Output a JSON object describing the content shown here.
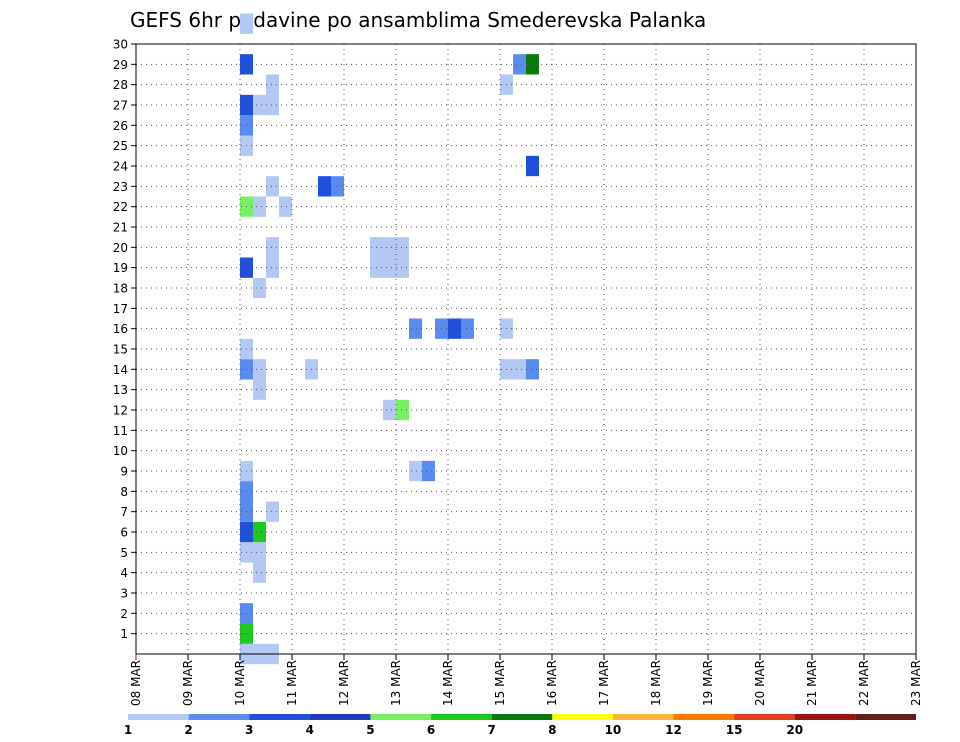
{
  "chart_data": {
    "type": "heatmap",
    "title": "GEFS 6hr padavine po ansamblima Smederevska Palanka",
    "xlabel": "",
    "ylabel": "",
    "x_ticks": [
      "08 MAR",
      "09 MAR",
      "10 MAR",
      "11 MAR",
      "12 MAR",
      "13 MAR",
      "14 MAR",
      "15 MAR",
      "16 MAR",
      "17 MAR",
      "18 MAR",
      "19 MAR",
      "20 MAR",
      "21 MAR",
      "22 MAR",
      "23 MAR"
    ],
    "x_range_steps": [
      0,
      60
    ],
    "step_hours": 6,
    "y_ticks": [
      "1",
      "2",
      "3",
      "4",
      "5",
      "6",
      "7",
      "8",
      "9",
      "10",
      "11",
      "12",
      "13",
      "14",
      "15",
      "16",
      "17",
      "18",
      "19",
      "20",
      "21",
      "22",
      "23",
      "24",
      "25",
      "26",
      "27",
      "28",
      "29",
      "30"
    ],
    "y_range": [
      0,
      30
    ],
    "grid": true,
    "legend_position": "bottom",
    "colorbar": {
      "labels": [
        "1",
        "2",
        "3",
        "4",
        "5",
        "6",
        "7",
        "8",
        "10",
        "12",
        "15",
        "20"
      ],
      "colors": [
        "#b4c8f5",
        "#5a8cf0",
        "#1e50dc",
        "#1e3cbe",
        "#78f064",
        "#1ec81e",
        "#0a780a",
        "#ffff00",
        "#ffb43c",
        "#ff7800",
        "#e63c1e",
        "#9b1414",
        "#641e1e"
      ]
    },
    "cells": [
      {
        "step": 8,
        "member": 0,
        "cat": 0
      },
      {
        "step": 9,
        "member": 0,
        "cat": 0
      },
      {
        "step": 10,
        "member": 0,
        "cat": 0
      },
      {
        "step": 8,
        "member": 1,
        "cat": 5
      },
      {
        "step": 8,
        "member": 2,
        "cat": 1
      },
      {
        "step": 9,
        "member": 4,
        "cat": 0
      },
      {
        "step": 8,
        "member": 5,
        "cat": 0
      },
      {
        "step": 9,
        "member": 5,
        "cat": 0
      },
      {
        "step": 8,
        "member": 6,
        "cat": 2
      },
      {
        "step": 9,
        "member": 6,
        "cat": 5
      },
      {
        "step": 8,
        "member": 7,
        "cat": 1
      },
      {
        "step": 10,
        "member": 7,
        "cat": 0
      },
      {
        "step": 8,
        "member": 8,
        "cat": 1
      },
      {
        "step": 8,
        "member": 9,
        "cat": 0
      },
      {
        "step": 21,
        "member": 9,
        "cat": 0
      },
      {
        "step": 22,
        "member": 9,
        "cat": 1
      },
      {
        "step": 19,
        "member": 12,
        "cat": 0
      },
      {
        "step": 20,
        "member": 12,
        "cat": 4
      },
      {
        "step": 9,
        "member": 13,
        "cat": 0
      },
      {
        "step": 8,
        "member": 14,
        "cat": 1
      },
      {
        "step": 9,
        "member": 14,
        "cat": 0
      },
      {
        "step": 13,
        "member": 14,
        "cat": 0
      },
      {
        "step": 28,
        "member": 14,
        "cat": 0
      },
      {
        "step": 29,
        "member": 14,
        "cat": 0
      },
      {
        "step": 30,
        "member": 14,
        "cat": 1
      },
      {
        "step": 8,
        "member": 15,
        "cat": 0
      },
      {
        "step": 21,
        "member": 16,
        "cat": 1
      },
      {
        "step": 23,
        "member": 16,
        "cat": 1
      },
      {
        "step": 24,
        "member": 16,
        "cat": 2
      },
      {
        "step": 25,
        "member": 16,
        "cat": 1
      },
      {
        "step": 28,
        "member": 16,
        "cat": 0
      },
      {
        "step": 9,
        "member": 18,
        "cat": 0
      },
      {
        "step": 8,
        "member": 19,
        "cat": 2
      },
      {
        "step": 10,
        "member": 19,
        "cat": 0
      },
      {
        "step": 18,
        "member": 19,
        "cat": 0
      },
      {
        "step": 19,
        "member": 19,
        "cat": 0
      },
      {
        "step": 20,
        "member": 19,
        "cat": 0
      },
      {
        "step": 10,
        "member": 20,
        "cat": 0
      },
      {
        "step": 18,
        "member": 20,
        "cat": 0
      },
      {
        "step": 19,
        "member": 20,
        "cat": 0
      },
      {
        "step": 20,
        "member": 20,
        "cat": 0
      },
      {
        "step": 8,
        "member": 22,
        "cat": 4
      },
      {
        "step": 9,
        "member": 22,
        "cat": 0
      },
      {
        "step": 11,
        "member": 22,
        "cat": 0
      },
      {
        "step": 10,
        "member": 23,
        "cat": 0
      },
      {
        "step": 14,
        "member": 23,
        "cat": 2
      },
      {
        "step": 15,
        "member": 23,
        "cat": 1
      },
      {
        "step": 30,
        "member": 24,
        "cat": 2
      },
      {
        "step": 8,
        "member": 25,
        "cat": 0
      },
      {
        "step": 8,
        "member": 26,
        "cat": 1
      },
      {
        "step": 8,
        "member": 27,
        "cat": 2
      },
      {
        "step": 9,
        "member": 27,
        "cat": 0
      },
      {
        "step": 10,
        "member": 27,
        "cat": 0
      },
      {
        "step": 10,
        "member": 28,
        "cat": 0
      },
      {
        "step": 28,
        "member": 28,
        "cat": 0
      },
      {
        "step": 8,
        "member": 29,
        "cat": 2
      },
      {
        "step": 29,
        "member": 29,
        "cat": 1
      },
      {
        "step": 30,
        "member": 29,
        "cat": 6
      },
      {
        "step": 8,
        "member": 31,
        "cat": 0
      }
    ]
  }
}
